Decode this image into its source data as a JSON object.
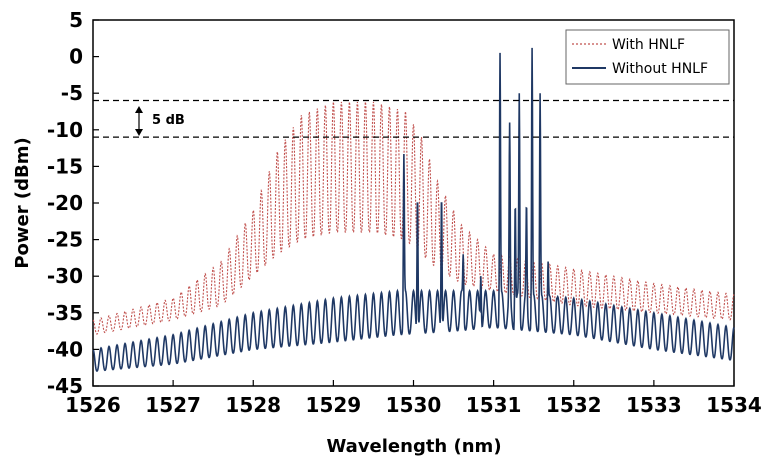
{
  "chart_data": {
    "type": "line",
    "title": "",
    "xlabel": "Wavelength (nm)",
    "ylabel": "Power (dBm)",
    "xlim": [
      1526,
      1534
    ],
    "ylim": [
      -45,
      5
    ],
    "xticks": [
      1526,
      1527,
      1528,
      1529,
      1530,
      1531,
      1532,
      1533,
      1534
    ],
    "yticks": [
      5,
      0,
      -5,
      -10,
      -15,
      -20,
      -25,
      -30,
      -35,
      -40,
      -45
    ],
    "grid": false,
    "legend_position": "top-right",
    "series": [
      {
        "name": "With HNLF",
        "color": "#c0504d",
        "style": "dotted",
        "comb_spacing_nm": 0.1,
        "upper_envelope": [
          [
            1526,
            -36
          ],
          [
            1527,
            -33
          ],
          [
            1527.6,
            -28
          ],
          [
            1528.0,
            -21
          ],
          [
            1528.3,
            -13
          ],
          [
            1528.6,
            -8
          ],
          [
            1529.0,
            -6.2
          ],
          [
            1529.5,
            -6.2
          ],
          [
            1529.9,
            -7.5
          ],
          [
            1530.1,
            -11
          ],
          [
            1530.3,
            -17
          ],
          [
            1530.6,
            -23
          ],
          [
            1531,
            -27
          ],
          [
            1531.5,
            -28
          ],
          [
            1532,
            -29
          ],
          [
            1533,
            -31
          ],
          [
            1534,
            -32.5
          ]
        ],
        "lower_envelope": [
          [
            1526,
            -38
          ],
          [
            1527,
            -36
          ],
          [
            1527.6,
            -34
          ],
          [
            1528.0,
            -30
          ],
          [
            1528.3,
            -27
          ],
          [
            1528.6,
            -25
          ],
          [
            1529.0,
            -24
          ],
          [
            1529.5,
            -24
          ],
          [
            1529.9,
            -25
          ],
          [
            1530.1,
            -27
          ],
          [
            1530.3,
            -29
          ],
          [
            1530.6,
            -31
          ],
          [
            1531,
            -32
          ],
          [
            1531.5,
            -33
          ],
          [
            1532,
            -34
          ],
          [
            1533,
            -35
          ],
          [
            1534,
            -36
          ]
        ]
      },
      {
        "name": "Without HNLF",
        "color": "#1f3864",
        "style": "solid",
        "comb_spacing_nm": 0.1,
        "upper_envelope": [
          [
            1526,
            -40
          ],
          [
            1527,
            -38
          ],
          [
            1528,
            -35
          ],
          [
            1529,
            -33
          ],
          [
            1529.8,
            -32
          ],
          [
            1530.5,
            -32
          ],
          [
            1531,
            -32
          ],
          [
            1531.5,
            -32.5
          ],
          [
            1532,
            -33
          ],
          [
            1533,
            -35
          ],
          [
            1534,
            -37
          ]
        ],
        "lower_envelope": [
          [
            1526,
            -43
          ],
          [
            1527,
            -42
          ],
          [
            1528,
            -40
          ],
          [
            1529,
            -39
          ],
          [
            1529.8,
            -38
          ],
          [
            1530.5,
            -37.5
          ],
          [
            1531,
            -37
          ],
          [
            1531.5,
            -37.5
          ],
          [
            1532,
            -38
          ],
          [
            1533,
            -40
          ],
          [
            1534,
            -41.5
          ]
        ],
        "peaks": [
          [
            1529.88,
            -13.3
          ],
          [
            1530.05,
            -19
          ],
          [
            1530.35,
            -19
          ],
          [
            1530.62,
            -27
          ],
          [
            1530.84,
            -30
          ],
          [
            1531.08,
            0.5
          ],
          [
            1531.2,
            -9
          ],
          [
            1531.27,
            -20
          ],
          [
            1531.32,
            -5
          ],
          [
            1531.41,
            -20
          ],
          [
            1531.48,
            1.2
          ],
          [
            1531.58,
            -5
          ],
          [
            1531.68,
            -28
          ],
          [
            1531.79,
            -33
          ]
        ]
      }
    ],
    "annotations": {
      "reference_levels": [
        -6,
        -11
      ],
      "difference_label": "5 dB"
    }
  }
}
